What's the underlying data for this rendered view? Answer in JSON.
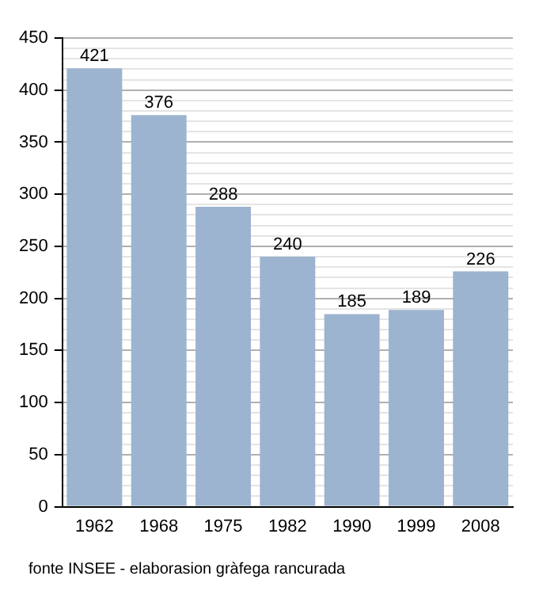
{
  "chart_data": {
    "type": "bar",
    "categories": [
      "1962",
      "1968",
      "1975",
      "1982",
      "1990",
      "1999",
      "2008"
    ],
    "values": [
      421,
      376,
      288,
      240,
      185,
      189,
      226
    ],
    "color": "#9cb4cf",
    "ylim": [
      0,
      450
    ],
    "yticks": [
      0,
      {
        "value": 10,
        "label": null
      },
      {
        "value": 20,
        "label": null
      },
      {
        "value": 30,
        "label": null
      },
      {
        "value": 40,
        "label": null
      },
      50,
      {
        "value": 60,
        "label": null
      },
      {
        "value": 70,
        "label": null
      },
      {
        "value": 80,
        "label": null
      },
      {
        "value": 90,
        "label": null
      },
      100,
      {
        "value": 110,
        "label": null
      },
      {
        "value": 120,
        "label": null
      },
      {
        "value": 130,
        "label": null
      },
      {
        "value": 140,
        "label": null
      },
      150,
      {
        "value": 160,
        "label": null
      },
      {
        "value": 170,
        "label": null
      },
      {
        "value": 180,
        "label": null
      },
      {
        "value": 190,
        "label": null
      },
      200,
      {
        "value": 210,
        "label": null
      },
      {
        "value": 220,
        "label": null
      },
      {
        "value": 230,
        "label": null
      },
      {
        "value": 240,
        "label": null
      },
      250,
      {
        "value": 260,
        "label": null
      },
      {
        "value": 270,
        "label": null
      },
      {
        "value": 280,
        "label": null
      },
      {
        "value": 290,
        "label": null
      },
      300,
      {
        "value": 310,
        "label": null
      },
      {
        "value": 320,
        "label": null
      },
      {
        "value": 330,
        "label": null
      },
      {
        "value": 340,
        "label": null
      },
      350,
      {
        "value": 360,
        "label": null
      },
      {
        "value": 370,
        "label": null
      },
      {
        "value": 380,
        "label": null
      },
      {
        "value": 390,
        "label": null
      },
      400,
      {
        "value": 410,
        "label": null
      },
      {
        "value": 420,
        "label": null
      },
      {
        "value": 430,
        "label": null
      },
      {
        "value": 440,
        "label": null
      },
      450
    ],
    "grid": "y",
    "data_labels": true,
    "annotations": [
      "fonte INSEE - elaborasion gràfega rancurada"
    ]
  }
}
